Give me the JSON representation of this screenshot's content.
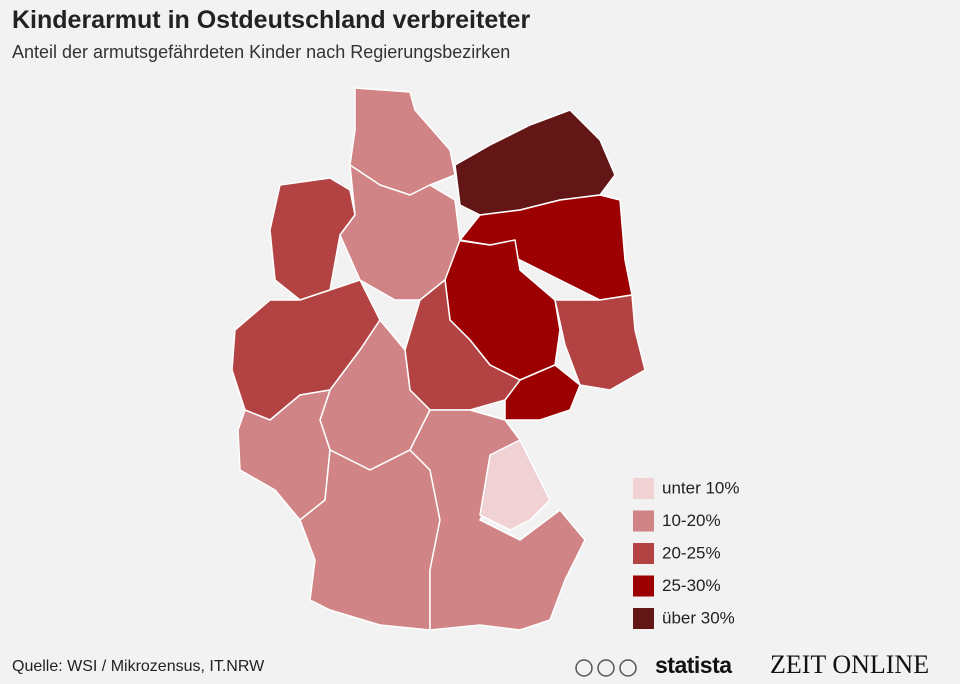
{
  "header": {
    "title": "Kinderarmut in Ostdeutschland verbreiteter",
    "subtitle": "Anteil der armutsgefährdeten Kinder nach Regierungsbezirken"
  },
  "legend": {
    "items": [
      {
        "label": "unter 10%",
        "color": "#f0d2d4"
      },
      {
        "label": "10-20%",
        "color": "#d08485"
      },
      {
        "label": "20-25%",
        "color": "#b34342"
      },
      {
        "label": "25-30%",
        "color": "#9c0000"
      },
      {
        "label": "über 30%",
        "color": "#631616"
      }
    ]
  },
  "footer": {
    "source": "Quelle: WSI / Mikrozensus, IT.NRW",
    "brand": "statista",
    "publisher": "ZEIT ONLINE"
  }
}
